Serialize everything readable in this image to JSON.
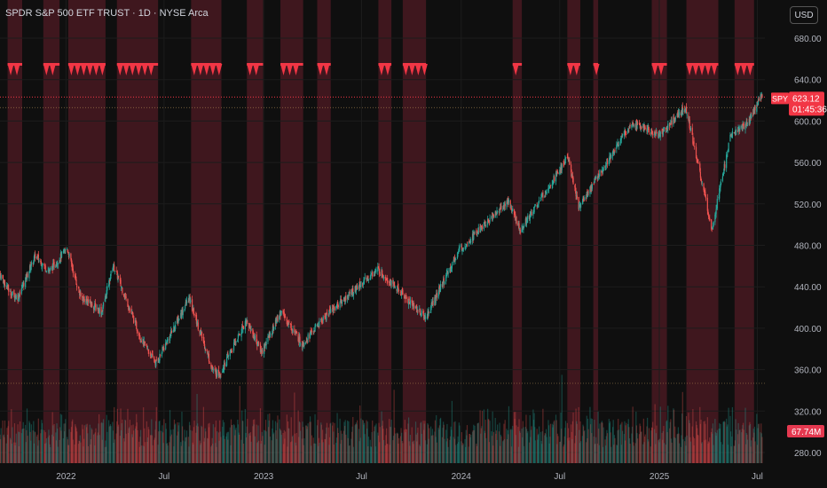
{
  "header": {
    "title": "SPDR S&P 500 ETF TRUST · 1D · NYSE Arca",
    "currency": "USD"
  },
  "price_badge": {
    "ticker": "SPY",
    "price": "623.12",
    "countdown": "01:45:36"
  },
  "volume_badge": {
    "value": "67.74M"
  },
  "colors": {
    "up": "#26a69a",
    "down": "#ef5350",
    "shade": "#7a2230",
    "marker": "#f23645",
    "grid": "#1c1c1c"
  },
  "chart_data": {
    "type": "candlestick",
    "title": "SPDR S&P 500 ETF TRUST · 1D · NYSE Arca",
    "y_axis": {
      "ticks": [
        280,
        320,
        360,
        400,
        440,
        480,
        520,
        560,
        600,
        640,
        680
      ],
      "ylim": [
        270,
        695
      ],
      "labels": [
        "280.00",
        "320.00",
        "360.00",
        "400.00",
        "440.00",
        "480.00",
        "520.00",
        "560.00",
        "600.00",
        "640.00",
        "680.00"
      ]
    },
    "x_axis": {
      "ticks": [
        {
          "label": "2022",
          "date": "2022-01-01"
        },
        {
          "label": "Jul",
          "date": "2022-07-01"
        },
        {
          "label": "2023",
          "date": "2023-01-01"
        },
        {
          "label": "Jul",
          "date": "2023-07-01"
        },
        {
          "label": "2024",
          "date": "2024-01-01"
        },
        {
          "label": "Jul",
          "date": "2024-07-01"
        },
        {
          "label": "2025",
          "date": "2025-01-01"
        },
        {
          "label": "Jul",
          "date": "2025-07-01"
        }
      ],
      "range": [
        "2021-09-01",
        "2025-07-15"
      ]
    },
    "price_path": [
      [
        "2021-09-01",
        452
      ],
      [
        "2021-09-20",
        434
      ],
      [
        "2021-10-04",
        430
      ],
      [
        "2021-11-05",
        470
      ],
      [
        "2021-12-01",
        455
      ],
      [
        "2022-01-03",
        477
      ],
      [
        "2022-01-27",
        431
      ],
      [
        "2022-03-08",
        416
      ],
      [
        "2022-03-29",
        461
      ],
      [
        "2022-05-20",
        389
      ],
      [
        "2022-06-16",
        366
      ],
      [
        "2022-08-16",
        429
      ],
      [
        "2022-09-30",
        358
      ],
      [
        "2022-10-12",
        356
      ],
      [
        "2022-11-30",
        408
      ],
      [
        "2022-12-28",
        377
      ],
      [
        "2023-02-02",
        416
      ],
      [
        "2023-03-13",
        385
      ],
      [
        "2023-05-01",
        415
      ],
      [
        "2023-07-31",
        457
      ],
      [
        "2023-10-27",
        410
      ],
      [
        "2023-12-29",
        476
      ],
      [
        "2024-03-28",
        523
      ],
      [
        "2024-04-19",
        495
      ],
      [
        "2024-07-16",
        565
      ],
      [
        "2024-08-05",
        517
      ],
      [
        "2024-11-11",
        599
      ],
      [
        "2024-12-31",
        586
      ],
      [
        "2025-02-19",
        613
      ],
      [
        "2025-04-08",
        496
      ],
      [
        "2025-05-13",
        586
      ],
      [
        "2025-06-13",
        598
      ],
      [
        "2025-07-10",
        625
      ]
    ],
    "last_price": 623.12,
    "volume": {
      "badge": "67.74M"
    },
    "alert_markers": {
      "y": 651,
      "marker_count": 132
    },
    "shaded_ranges": [
      [
        "2021-09-15",
        "2021-10-12"
      ],
      [
        "2021-11-20",
        "2021-12-20"
      ],
      [
        "2022-01-05",
        "2022-03-15"
      ],
      [
        "2022-04-05",
        "2022-06-20"
      ],
      [
        "2022-08-20",
        "2022-10-15"
      ],
      [
        "2022-12-01",
        "2022-12-31"
      ],
      [
        "2023-02-01",
        "2023-03-15"
      ],
      [
        "2023-04-10",
        "2023-05-05"
      ],
      [
        "2023-08-01",
        "2023-08-25"
      ],
      [
        "2023-09-15",
        "2023-10-28"
      ],
      [
        "2024-04-05",
        "2024-04-22"
      ],
      [
        "2024-07-15",
        "2024-08-08"
      ],
      [
        "2024-09-01",
        "2024-09-10"
      ],
      [
        "2024-12-18",
        "2025-01-15"
      ],
      [
        "2025-02-20",
        "2025-04-20"
      ],
      [
        "2025-05-20",
        "2025-06-25"
      ]
    ]
  }
}
